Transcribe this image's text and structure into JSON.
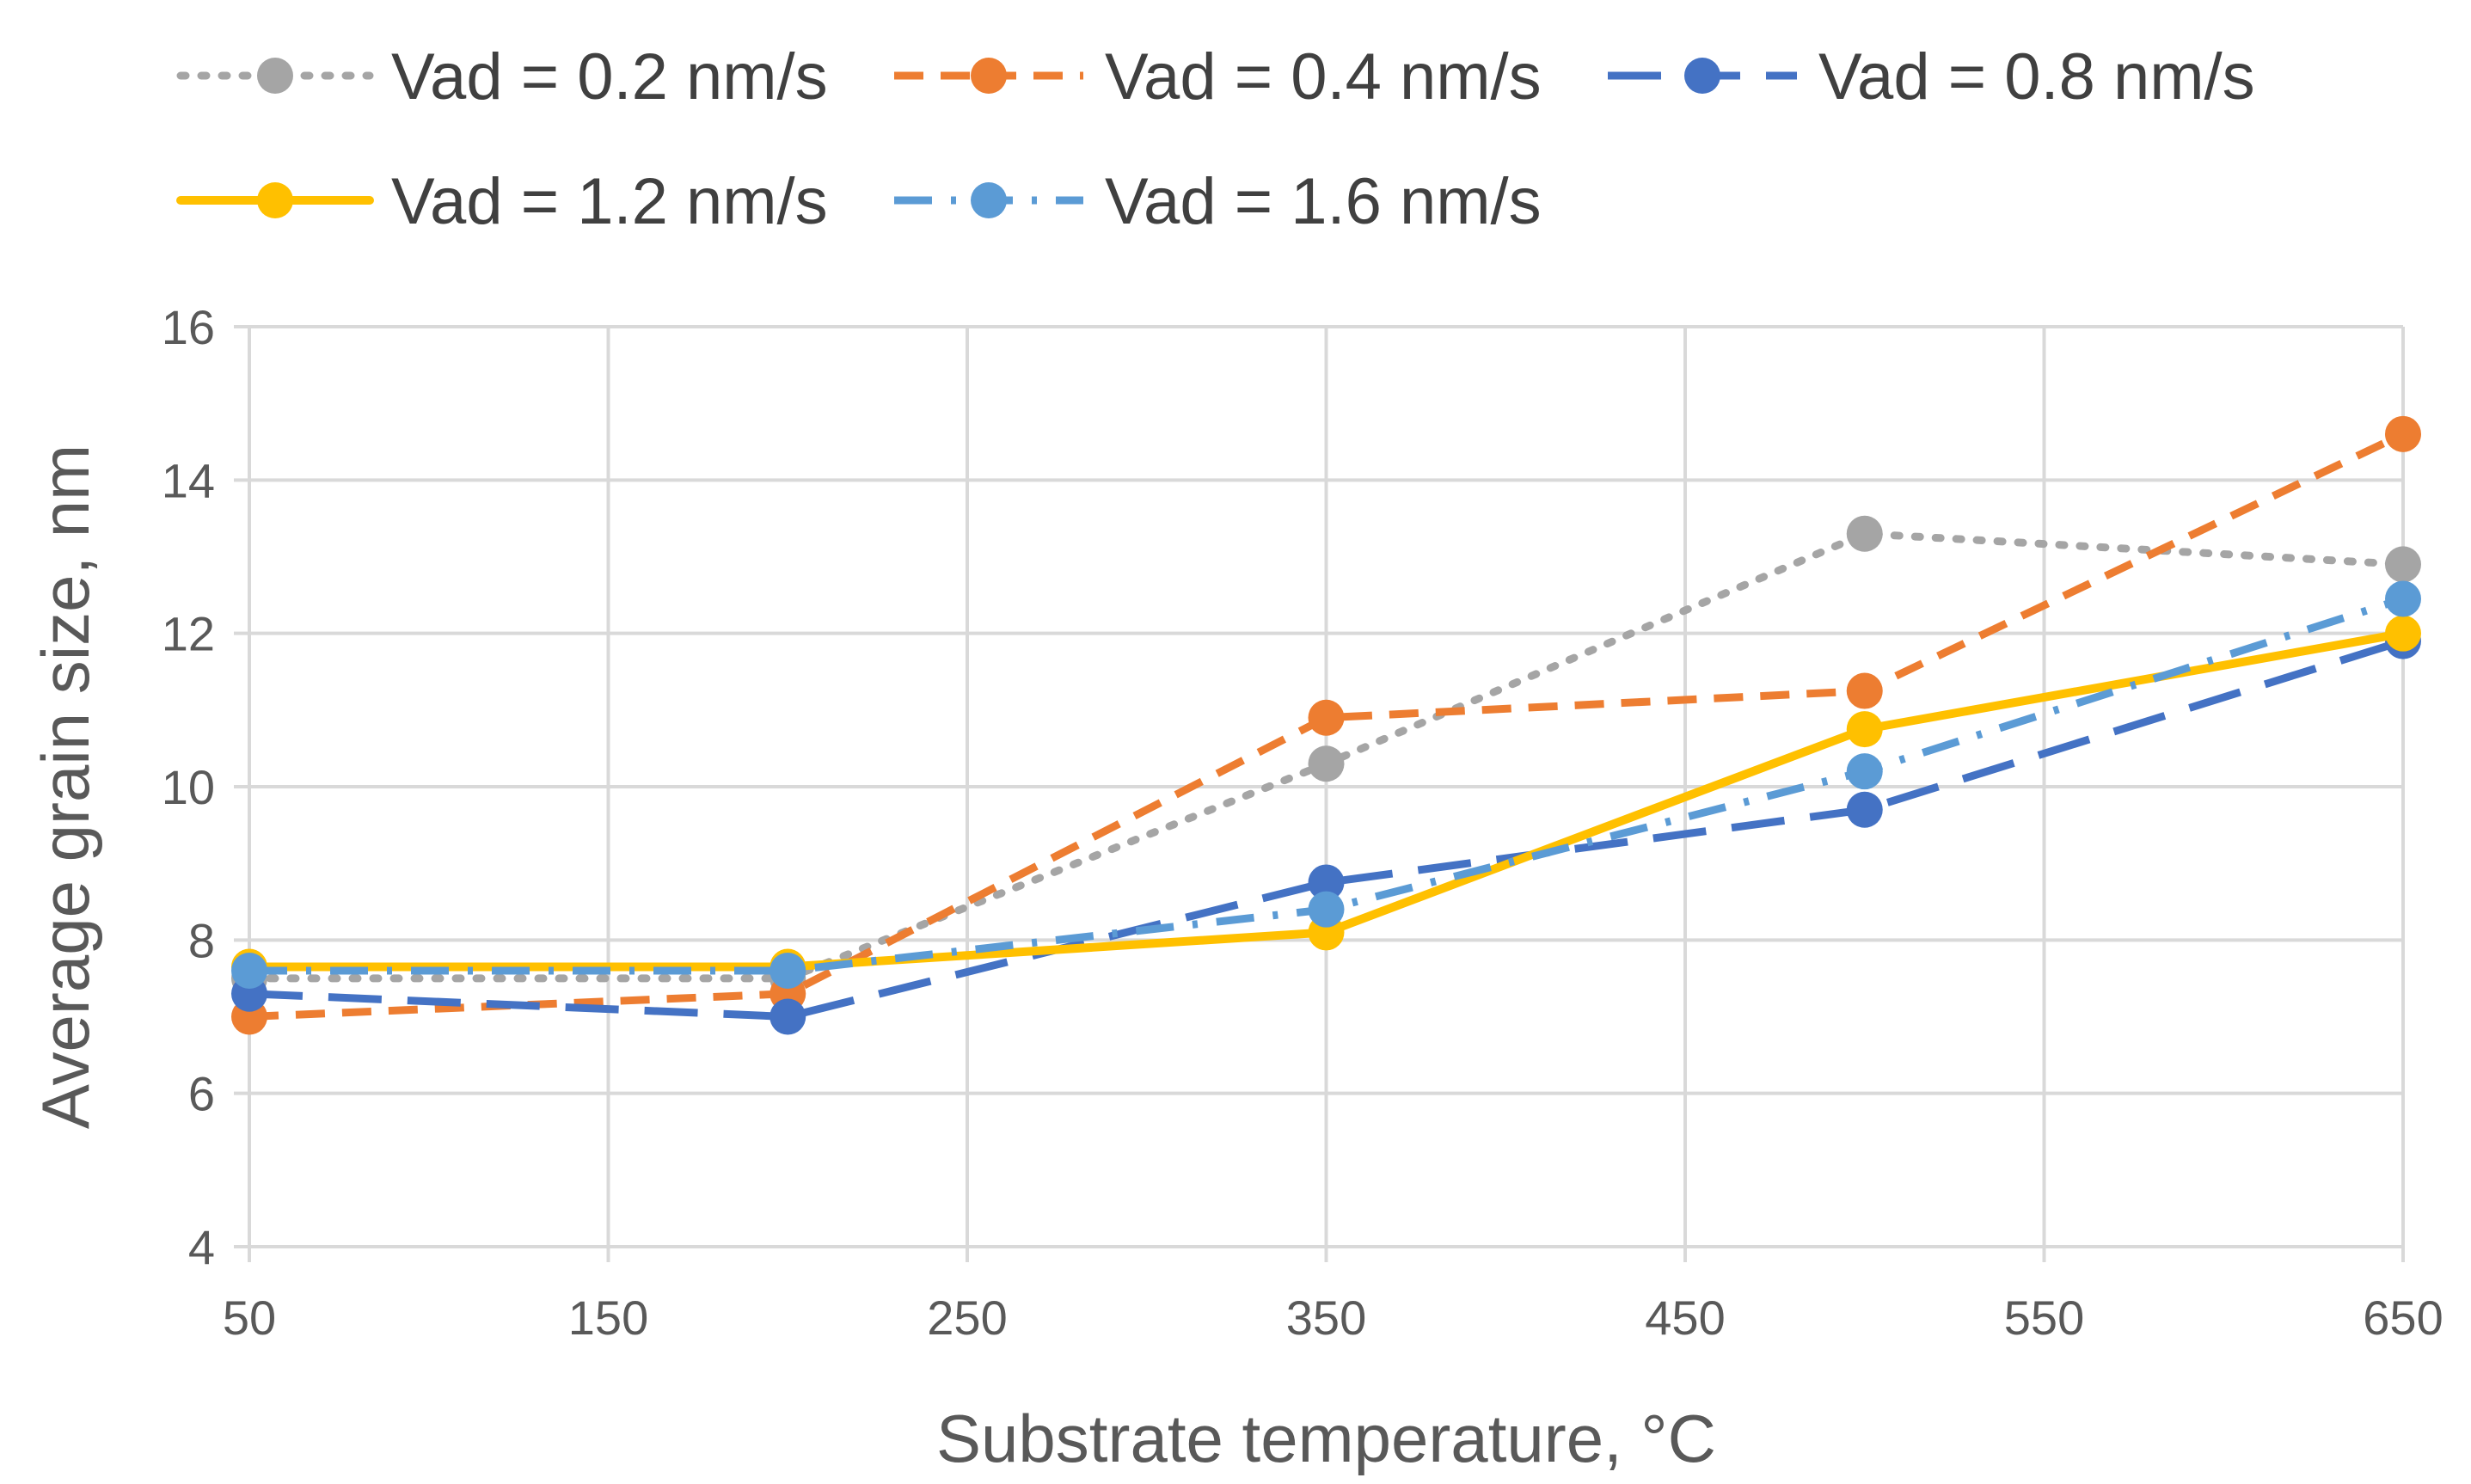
{
  "chart_data": {
    "type": "line",
    "title": "",
    "xlabel": "Substrate temperature, °C",
    "ylabel": "Average grain size, nm",
    "xlim": [
      50,
      650
    ],
    "ylim": [
      4,
      16
    ],
    "xticks": [
      50,
      150,
      250,
      350,
      450,
      550,
      650
    ],
    "yticks": [
      4,
      6,
      8,
      10,
      12,
      14,
      16
    ],
    "grid": true,
    "legend_position": "top",
    "series": [
      {
        "name": "Vad = 0.2 nm/s",
        "color": "#a5a5a5",
        "line_style": "dotted",
        "x": [
          50,
          200,
          350,
          500,
          650
        ],
        "y": [
          7.5,
          7.5,
          10.3,
          13.3,
          12.9
        ]
      },
      {
        "name": "Vad = 0.4 nm/s",
        "color": "#ed7d31",
        "line_style": "dashed",
        "x": [
          50,
          200,
          350,
          500,
          650
        ],
        "y": [
          7.0,
          7.3,
          10.9,
          11.25,
          14.6
        ]
      },
      {
        "name": "Vad = 0.8 nm/s",
        "color": "#4472c4",
        "line_style": "long-dash",
        "x": [
          50,
          200,
          350,
          500,
          650
        ],
        "y": [
          7.3,
          7.0,
          8.75,
          9.7,
          11.9
        ]
      },
      {
        "name": "Vad = 1.2 nm/s",
        "color": "#ffc000",
        "line_style": "solid",
        "x": [
          50,
          200,
          350,
          500,
          650
        ],
        "y": [
          7.65,
          7.65,
          8.1,
          10.75,
          12.0
        ]
      },
      {
        "name": "Vad = 1.6 nm/s",
        "color": "#5b9bd5",
        "line_style": "dash-dot",
        "x": [
          50,
          200,
          350,
          500,
          650
        ],
        "y": [
          7.6,
          7.6,
          8.4,
          10.2,
          12.45
        ]
      }
    ]
  }
}
